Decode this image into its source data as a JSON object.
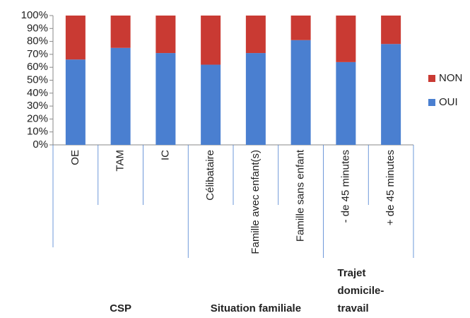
{
  "chart_data": {
    "type": "stacked_bar",
    "categories": [
      "OE",
      "TAM",
      "IC",
      "Célibataire",
      "Famille avec enfant(s)",
      "Famille sans enfant",
      "- de 45 minutes",
      "+ de 45 minutes"
    ],
    "groups": [
      {
        "label_lines": [
          "CSP"
        ],
        "start": 0,
        "end": 3
      },
      {
        "label_lines": [
          "Situation familiale"
        ],
        "start": 3,
        "end": 6
      },
      {
        "label_lines": [
          "Trajet",
          "domicile-",
          "travail"
        ],
        "start": 6,
        "end": 8
      }
    ],
    "series": [
      {
        "name": "OUI",
        "color": "#4a7fd0",
        "values": [
          66,
          75,
          71,
          62,
          71,
          81,
          64,
          78
        ]
      },
      {
        "name": "NON",
        "color": "#c93a33",
        "values": [
          34,
          25,
          29,
          38,
          29,
          19,
          36,
          22
        ]
      }
    ],
    "ylim": [
      0,
      100
    ],
    "yticks": [
      {
        "value": 0,
        "label": "0%"
      },
      {
        "value": 10,
        "label": "10%"
      },
      {
        "value": 20,
        "label": "20%"
      },
      {
        "value": 30,
        "label": "30%"
      },
      {
        "value": 40,
        "label": "40%"
      },
      {
        "value": 50,
        "label": "50%"
      },
      {
        "value": 60,
        "label": "60%"
      },
      {
        "value": 70,
        "label": "70%"
      },
      {
        "value": 80,
        "label": "80%"
      },
      {
        "value": 90,
        "label": "90%"
      },
      {
        "value": 100,
        "label": "100%"
      }
    ],
    "legend": "right"
  }
}
